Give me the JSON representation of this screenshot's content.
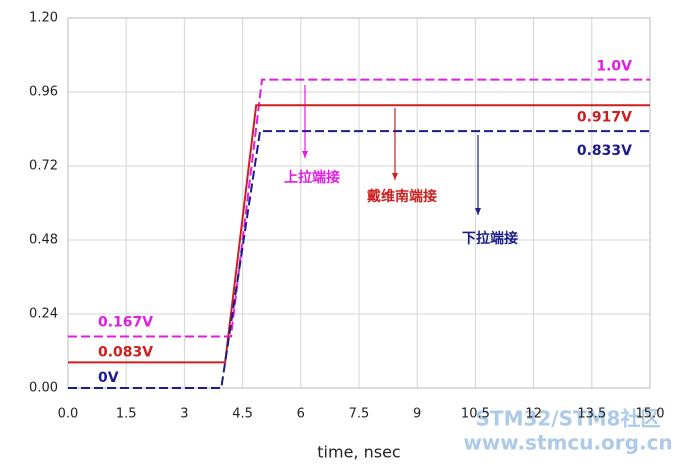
{
  "chart_data": {
    "type": "line",
    "xlabel": "time, nsec",
    "xlim": [
      0,
      15
    ],
    "ylim": [
      0,
      1.2
    ],
    "xticks": [
      {
        "value": 0,
        "label": "0.0"
      },
      1.5,
      3,
      4.5,
      6,
      7.5,
      9,
      10.5,
      12,
      13.5,
      {
        "value": 15,
        "label": "15.0"
      }
    ],
    "yticks": [
      {
        "value": 0,
        "label": "0.00"
      },
      0.24,
      0.48,
      0.72,
      0.96,
      {
        "value": 1.2,
        "label": "1.20"
      }
    ],
    "grid": true,
    "series": [
      {
        "name": "上拉端接",
        "color": "#e01ee0",
        "dash": true,
        "x": [
          0,
          4.2,
          5.0,
          15
        ],
        "values": [
          0.167,
          0.167,
          1.0,
          1.0
        ],
        "value_labels": [
          "0.167V",
          null,
          null,
          "1.0V"
        ]
      },
      {
        "name": "戴维南端接",
        "color": "#cc1f1f",
        "dash": false,
        "x": [
          0,
          4.05,
          4.85,
          15
        ],
        "values": [
          0.083,
          0.083,
          0.917,
          0.917
        ],
        "value_labels": [
          "0.083V",
          null,
          null,
          "0.917V"
        ]
      },
      {
        "name": "下拉端接",
        "color": "#1c1c8c",
        "dash": true,
        "x": [
          0,
          3.95,
          4.95,
          15
        ],
        "values": [
          0,
          0,
          0.833,
          0.833
        ],
        "value_labels": [
          "0V",
          null,
          null,
          "0.833V"
        ]
      }
    ]
  },
  "watermark": [
    "STM32/STM8社区",
    "www.stmcu.org.cn"
  ]
}
